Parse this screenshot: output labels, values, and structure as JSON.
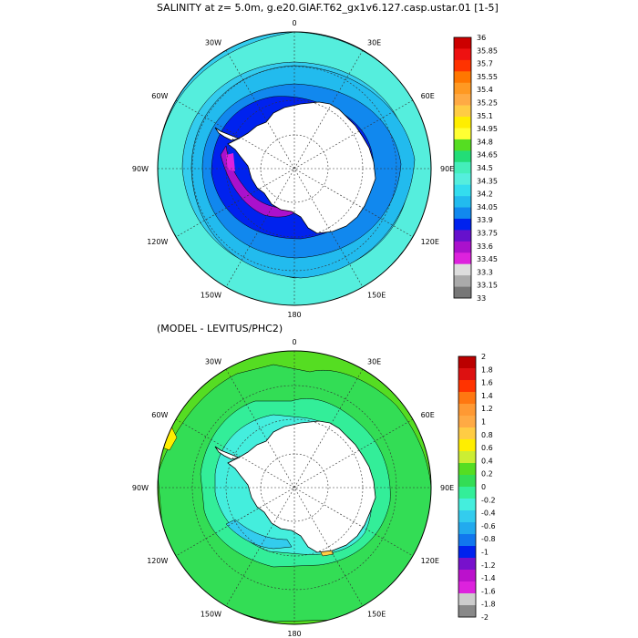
{
  "map_top": {
    "title": "SALINITY at z=   5.0m, g.e20.GIAF.T62_gx1v6.127.casp.ustar.01 [1-5]",
    "lon_labels": [
      "0",
      "30E",
      "60E",
      "90E",
      "120E",
      "150E",
      "180",
      "150W",
      "120W",
      "90W",
      "60W",
      "30W"
    ],
    "colorbar": {
      "labels": [
        "36",
        "35.85",
        "35.7",
        "35.55",
        "35.4",
        "35.25",
        "35.1",
        "34.95",
        "34.8",
        "34.65",
        "34.5",
        "34.35",
        "34.2",
        "34.05",
        "33.9",
        "33.75",
        "33.6",
        "33.45",
        "33.3",
        "33.15",
        "33"
      ],
      "colors": [
        "#cc0000",
        "#ee1111",
        "#ff3300",
        "#ff7700",
        "#ff9922",
        "#ffaa44",
        "#ffcc44",
        "#ffee00",
        "#ffff33",
        "#55dd22",
        "#22dd77",
        "#44eebb",
        "#55eedd",
        "#33ddee",
        "#22bbee",
        "#1188ee",
        "#0022ee",
        "#6611cc",
        "#aa11cc",
        "#dd22dd",
        "#dddddd",
        "#aaaaaa",
        "#777777"
      ]
    }
  },
  "map_bottom": {
    "title": "(MODEL - LEVITUS/PHC2)",
    "lon_labels": [
      "0",
      "30E",
      "60E",
      "90E",
      "120E",
      "150E",
      "180",
      "150W",
      "120W",
      "90W",
      "60W",
      "30W"
    ],
    "colorbar": {
      "labels": [
        "2",
        "1.8",
        "1.6",
        "1.4",
        "1.2",
        "1",
        "0.8",
        "0.6",
        "0.4",
        "0.2",
        "0",
        "-0.2",
        "-0.4",
        "-0.6",
        "-0.8",
        "-1",
        "-1.2",
        "-1.4",
        "-1.6",
        "-1.8",
        "-2"
      ],
      "colors": [
        "#bb0000",
        "#dd1111",
        "#ff3300",
        "#ff7711",
        "#ff9933",
        "#ffaa44",
        "#ffcc44",
        "#ffee00",
        "#ccee33",
        "#55dd22",
        "#33dd55",
        "#33ee99",
        "#44eedd",
        "#33ccee",
        "#22aaee",
        "#1177ee",
        "#0022ee",
        "#7711cc",
        "#bb11cc",
        "#dd22dd",
        "#cccccc",
        "#888888"
      ]
    }
  }
}
